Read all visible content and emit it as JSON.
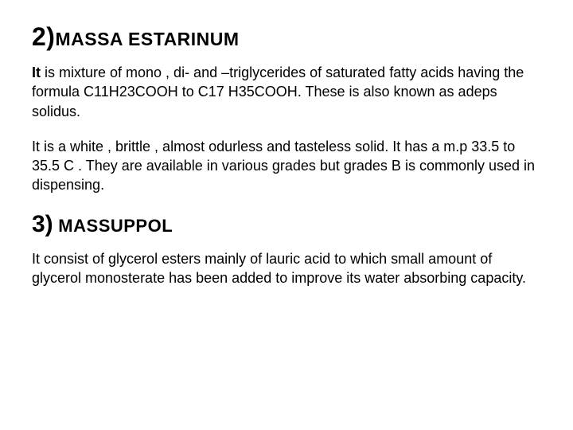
{
  "section1": {
    "number": "2)",
    "title": "MASSA  ESTARINUM",
    "para1_lead": "It",
    "para1_rest": " is mixture of mono , di- and –triglycerides of saturated fatty acids having the formula C11H23COOH to C17 H35COOH. These is also known as adeps solidus.",
    "para2": "It is a white , brittle , almost odurless and tasteless solid.   It has a m.p 33.5 to 35.5 C . They are  available in various grades but grades B is  commonly used in dispensing."
  },
  "section2": {
    "number": "3)",
    "title": " MASSUPPOL",
    "para1": "It consist of glycerol esters mainly of lauric acid  to which small amount of glycerol monosterate has been added to improve its water absorbing capacity."
  }
}
